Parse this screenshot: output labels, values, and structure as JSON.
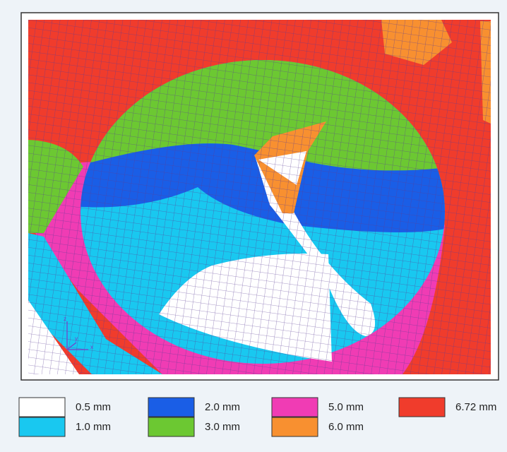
{
  "axes_triad": [
    "z",
    "y",
    "x"
  ],
  "legend": [
    {
      "label": "0.5 mm",
      "color": "#ffffff"
    },
    {
      "label": "1.0 mm",
      "color": "#19c8f0"
    },
    {
      "label": "2.0 mm",
      "color": "#1a5ee6"
    },
    {
      "label": "3.0 mm",
      "color": "#6cc832"
    },
    {
      "label": "5.0 mm",
      "color": "#f03cb4"
    },
    {
      "label": "6.0 mm",
      "color": "#f89030"
    },
    {
      "label": "6.72 mm",
      "color": "#f03c2c"
    }
  ]
}
